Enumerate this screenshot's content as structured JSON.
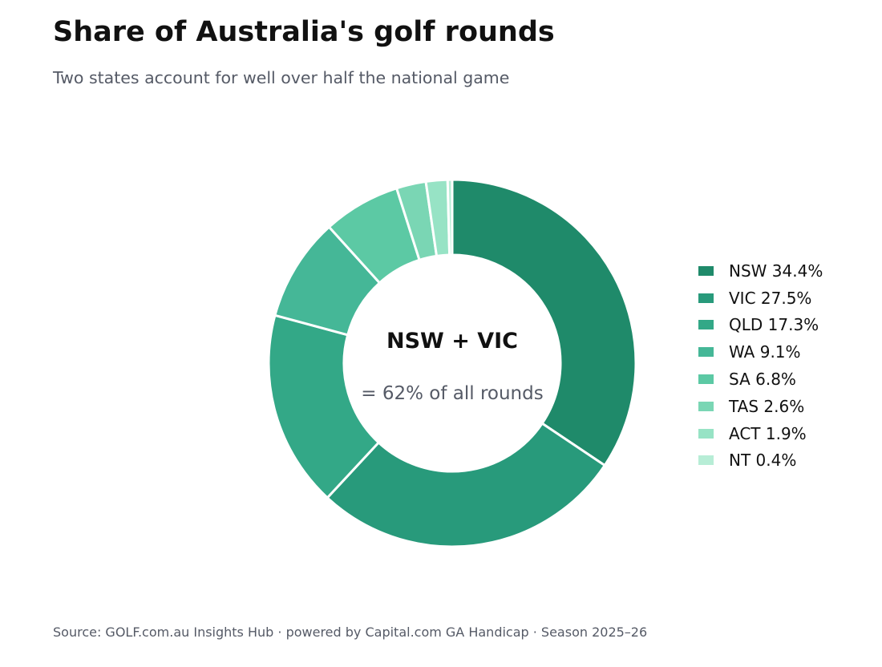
{
  "header": {
    "title": "Share of Australia's golf rounds",
    "subtitle": "Two states account for well over half the national game"
  },
  "center_label": {
    "heading": "NSW + VIC",
    "subtext": "= 62% of all rounds"
  },
  "footer": {
    "source": "Source: GOLF.com.au Insights Hub  ·  powered by Capital.com GA Handicap  ·  Season 2025–26"
  },
  "chart_data": {
    "type": "pie",
    "variant": "donut",
    "unit": "%",
    "legend_position": "right",
    "categories": [
      "NSW",
      "VIC",
      "QLD",
      "WA",
      "SA",
      "TAS",
      "ACT",
      "NT"
    ],
    "values": [
      34.4,
      27.5,
      17.3,
      9.1,
      6.8,
      2.6,
      1.9,
      0.4
    ],
    "colors": [
      "#1f8a6a",
      "#289a7b",
      "#33a887",
      "#45b797",
      "#5cc9a4",
      "#7ad6b4",
      "#97e3c5",
      "#b7edd6"
    ],
    "legend_labels": [
      "NSW  34.4%",
      "VIC  27.5%",
      "QLD  17.3%",
      "WA  9.1%",
      "SA  6.8%",
      "TAS  2.6%",
      "ACT  1.9%",
      "NT  0.4%"
    ]
  }
}
